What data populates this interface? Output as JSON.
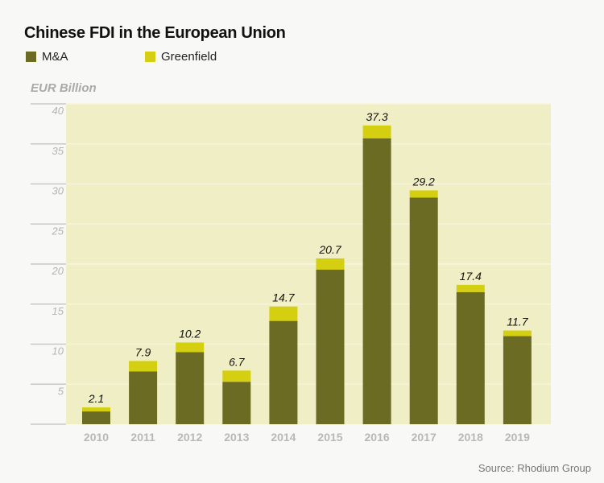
{
  "chart_data": {
    "type": "bar",
    "stacked": true,
    "title": "Chinese FDI in the European Union",
    "ylabel": "EUR Billion",
    "xlabel": "",
    "source": "Source: Rhodium Group",
    "ylim": [
      0,
      40
    ],
    "yticks": [
      5,
      10,
      15,
      20,
      25,
      30,
      35,
      40
    ],
    "grid": true,
    "legend_placement": "top-left",
    "categories": [
      "2010",
      "2011",
      "2012",
      "2013",
      "2014",
      "2015",
      "2016",
      "2017",
      "2018",
      "2019"
    ],
    "series": [
      {
        "name": "M&A",
        "color": "#6b6b23",
        "values": [
          1.6,
          6.6,
          9.0,
          5.3,
          12.9,
          19.3,
          35.7,
          28.3,
          16.5,
          11.0
        ]
      },
      {
        "name": "Greenfield",
        "color": "#d4cf10",
        "values": [
          0.5,
          1.3,
          1.2,
          1.4,
          1.8,
          1.4,
          1.6,
          0.9,
          0.9,
          0.7
        ]
      }
    ],
    "totals": [
      "2.1",
      "7.9",
      "10.2",
      "6.7",
      "14.7",
      "20.7",
      "37.3",
      "29.2",
      "17.4",
      "11.7"
    ],
    "colors": {
      "plot_background": "#efeec4",
      "background": "#f8f8f6"
    }
  }
}
